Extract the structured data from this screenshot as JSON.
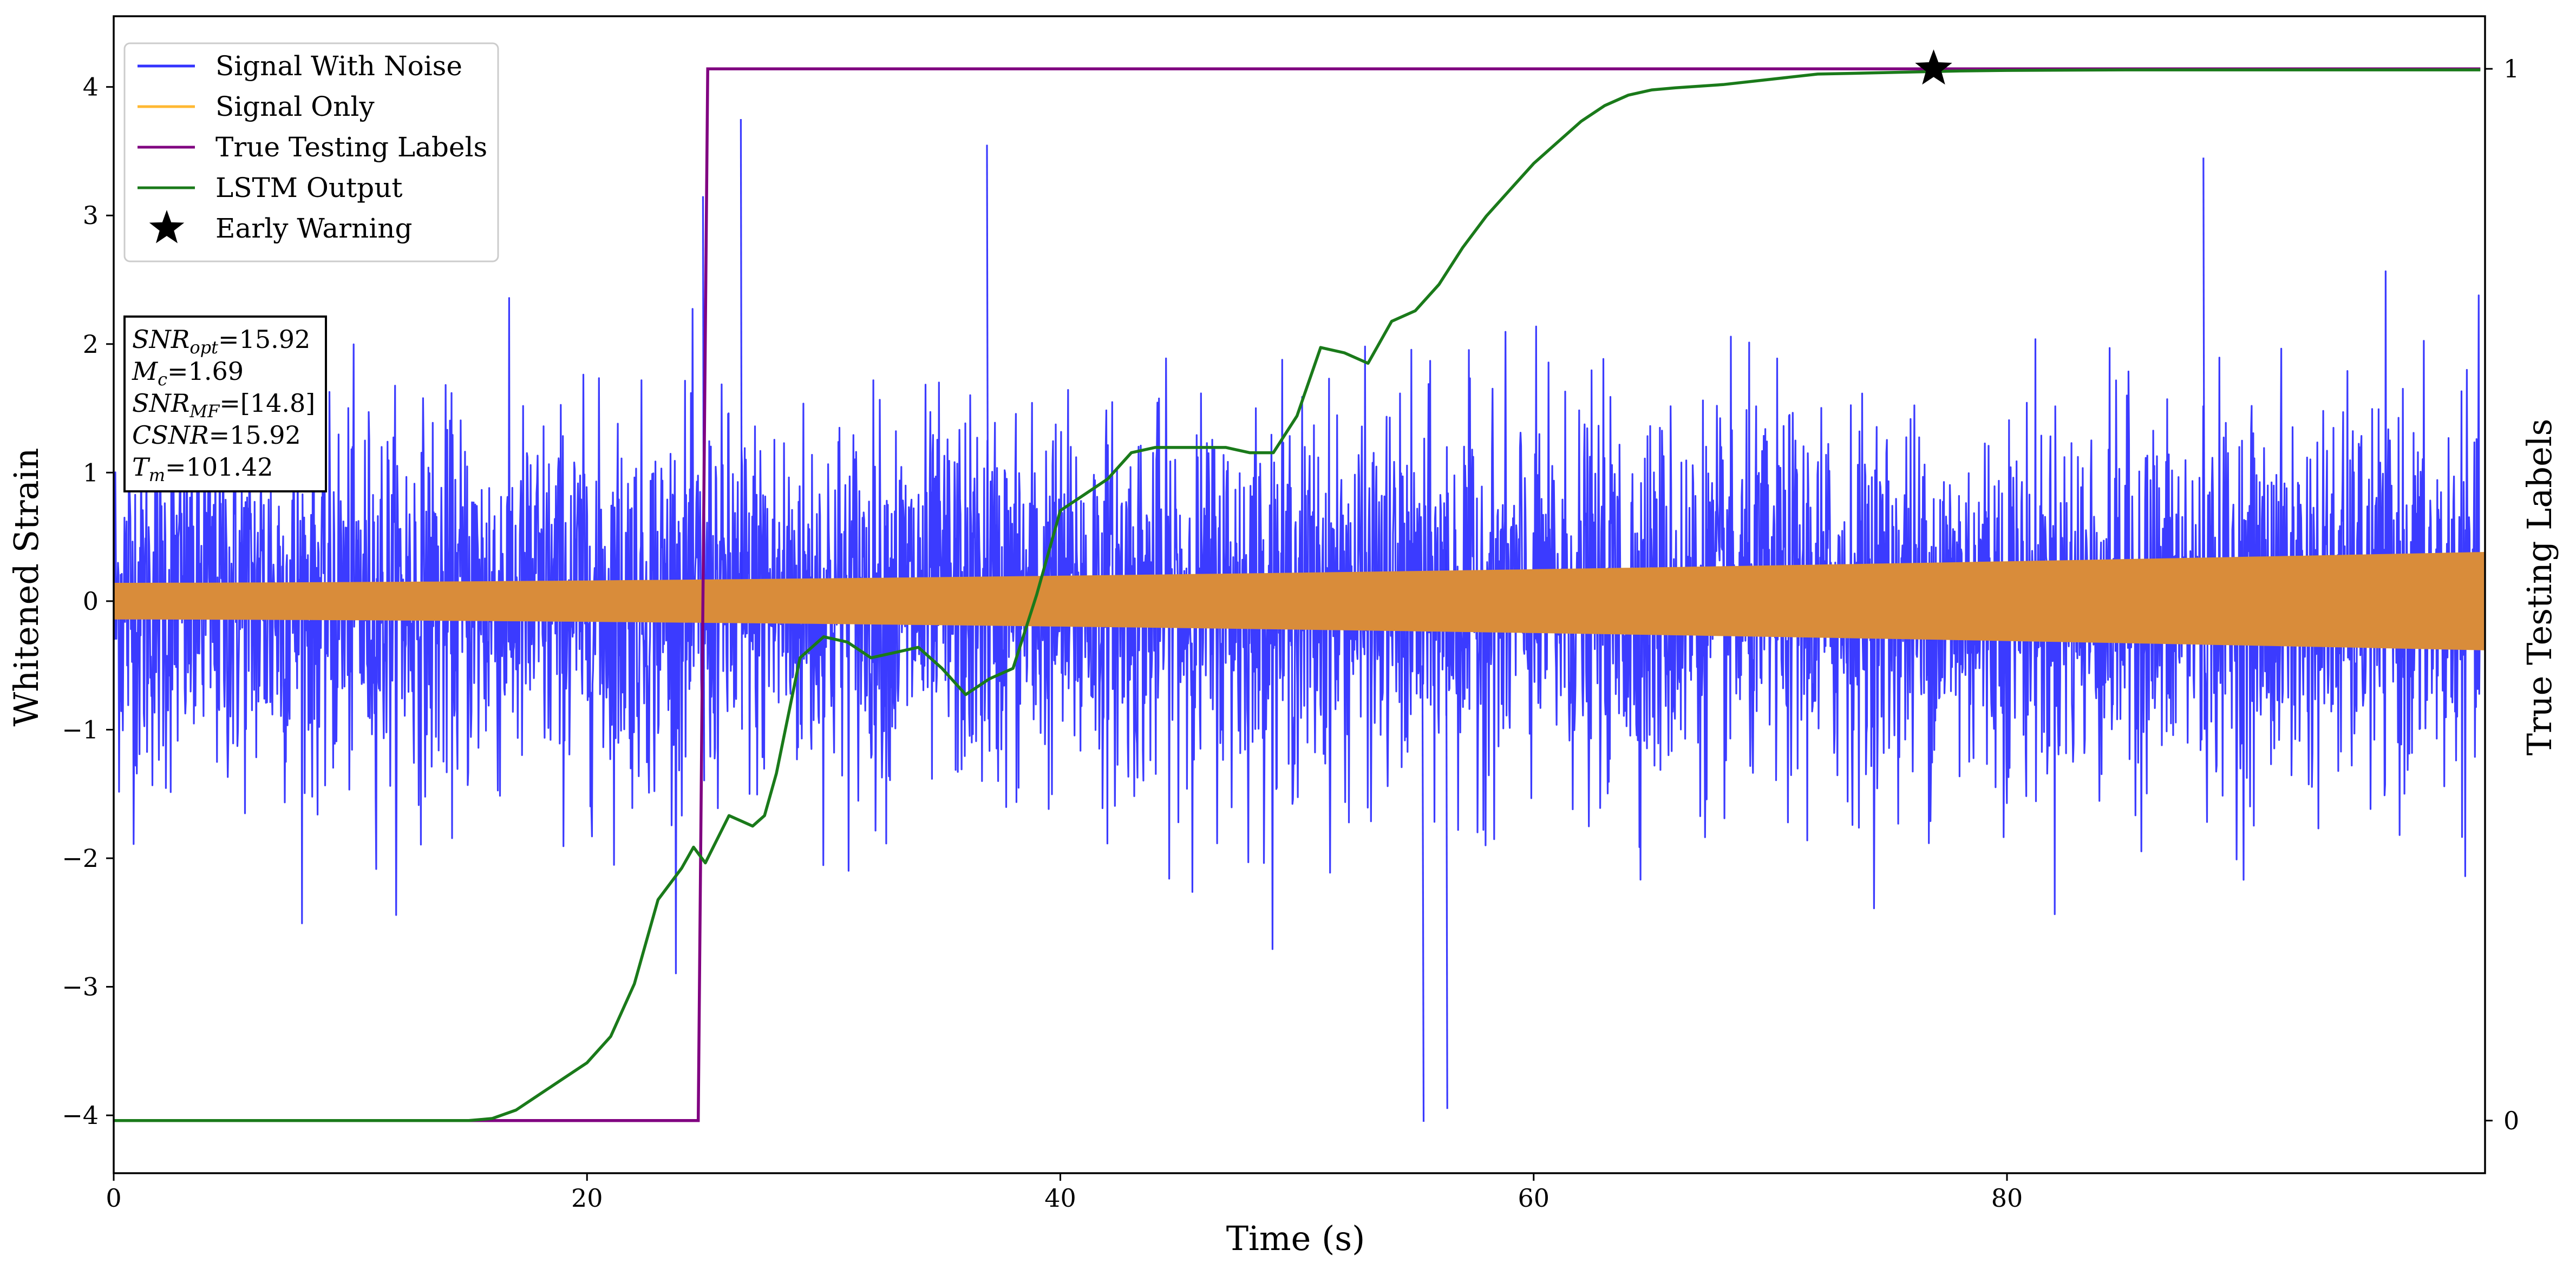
{
  "chart_data": {
    "type": "line",
    "xlabel": "Time (s)",
    "ylabel_left": "Whitened Strain",
    "ylabel_right": "True Testing Labels",
    "xlim": [
      0,
      100.2
    ],
    "ylim_left": [
      -4.45,
      4.55
    ],
    "ylim_right": [
      -0.05,
      1.05
    ],
    "x_ticks": [
      0,
      20,
      40,
      60,
      80
    ],
    "y_ticks_left": [
      -4,
      -3,
      -2,
      -1,
      0,
      1,
      2,
      3,
      4
    ],
    "y_ticks_right": [
      0,
      1
    ],
    "grid": false,
    "legend_placement": "top-left",
    "legend": [
      {
        "label": "Signal With Noise",
        "color": "#3333ff",
        "marker": "line"
      },
      {
        "label": "Signal Only",
        "color": "#ffb833",
        "marker": "line"
      },
      {
        "label": "True Testing Labels",
        "color": "#800080",
        "marker": "line"
      },
      {
        "label": "LSTM Output",
        "color": "#1a7a1a",
        "marker": "line"
      },
      {
        "label": "Early Warning",
        "color": "#000000",
        "marker": "star"
      }
    ],
    "annotation_box": {
      "lines": [
        {
          "var": "SNR",
          "sub": "opt",
          "value": "=15.92"
        },
        {
          "var": "M",
          "sub": "c",
          "value": "=1.69"
        },
        {
          "var": "SNR",
          "sub": "MF",
          "value": "=[14.8]"
        },
        {
          "var": "CSNR",
          "sub": "",
          "value": "=15.92"
        },
        {
          "var": "T",
          "sub": "m",
          "value": "=101.42"
        }
      ]
    },
    "series": [
      {
        "name": "Signal With Noise",
        "color": "#3333ff",
        "axis": "left",
        "style": "noise",
        "envelope_sigma": 0.72,
        "approx_extremes": {
          "max": 3.75,
          "min": -4.05
        }
      },
      {
        "name": "Signal Only",
        "color": "#d98c3a",
        "axis": "left",
        "style": "envelope",
        "amplitude_start": 0.13,
        "amplitude_end": 0.37
      },
      {
        "name": "True Testing Labels",
        "color": "#800080",
        "axis": "right",
        "x": [
          0,
          24.7,
          25.1,
          100
        ],
        "values": [
          0,
          0,
          1,
          1
        ]
      },
      {
        "name": "LSTM Output",
        "color": "#1a7a1a",
        "axis": "right",
        "x": [
          0,
          10,
          15,
          16,
          17,
          18,
          19,
          20,
          21,
          22,
          23,
          24,
          24.5,
          25,
          26,
          26.5,
          27,
          27.5,
          28,
          29,
          30,
          31,
          32,
          33,
          34,
          35,
          36,
          37,
          38,
          39,
          40,
          41,
          42,
          43,
          44,
          45,
          46,
          47,
          48,
          49,
          50,
          51,
          52,
          53,
          54,
          55,
          56,
          57,
          58,
          59,
          60,
          61,
          62,
          63,
          64,
          65,
          66,
          68,
          70,
          72,
          74,
          76,
          78,
          80,
          85,
          90,
          95,
          100
        ],
        "values": [
          0,
          0,
          0,
          0.002,
          0.01,
          0.025,
          0.04,
          0.055,
          0.08,
          0.13,
          0.21,
          0.24,
          0.26,
          0.245,
          0.29,
          0.285,
          0.28,
          0.29,
          0.33,
          0.44,
          0.46,
          0.455,
          0.44,
          0.445,
          0.45,
          0.43,
          0.405,
          0.42,
          0.43,
          0.5,
          0.58,
          0.595,
          0.61,
          0.635,
          0.64,
          0.64,
          0.64,
          0.64,
          0.635,
          0.635,
          0.67,
          0.735,
          0.73,
          0.72,
          0.76,
          0.77,
          0.795,
          0.83,
          0.86,
          0.885,
          0.91,
          0.93,
          0.95,
          0.965,
          0.975,
          0.98,
          0.982,
          0.985,
          0.99,
          0.995,
          0.996,
          0.997,
          0.998,
          0.9985,
          0.999,
          0.999,
          0.999,
          0.999
        ]
      }
    ],
    "early_warning_point": {
      "x": 76.9,
      "value": 1.0,
      "axis": "right"
    }
  },
  "colors": {
    "noise": "#3333ff",
    "signal": "#d98c3a",
    "labels": "#800080",
    "lstm": "#1a7a1a",
    "star": "#000000",
    "axes": "#000000"
  }
}
